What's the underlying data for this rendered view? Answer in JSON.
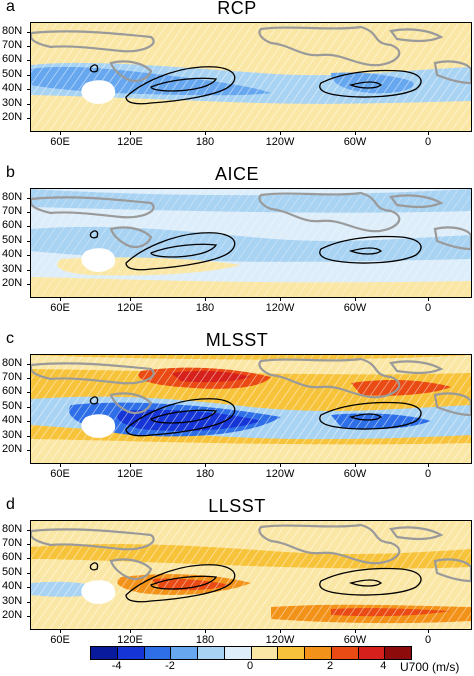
{
  "panels": [
    {
      "letter": "a",
      "title": "RCP"
    },
    {
      "letter": "b",
      "title": "AICE"
    },
    {
      "letter": "c",
      "title": "MLSST"
    },
    {
      "letter": "d",
      "title": "LLSST"
    }
  ],
  "lat_labels": [
    "80N",
    "70N",
    "60N",
    "50N",
    "40N",
    "30N",
    "20N"
  ],
  "lon_labels": [
    "60E",
    "120E",
    "180",
    "120W",
    "60W",
    "0"
  ],
  "colorbar": {
    "colors": [
      "#0a1a9c",
      "#1535d6",
      "#2e6fe8",
      "#67a7ef",
      "#a9d3f3",
      "#ddeefa",
      "#fbe7a5",
      "#f7c33a",
      "#f39218",
      "#ea4a13",
      "#d6201b",
      "#8e0b0b"
    ],
    "tick_labels": [
      "-4",
      "-2",
      "0",
      "2",
      "4"
    ],
    "unit": "U700 (m/s)"
  },
  "colors": {
    "land_outline": "#9a9a9a",
    "jet_contour": "#000000",
    "hatch": "#ffffff",
    "missing": "#ffffff"
  }
}
